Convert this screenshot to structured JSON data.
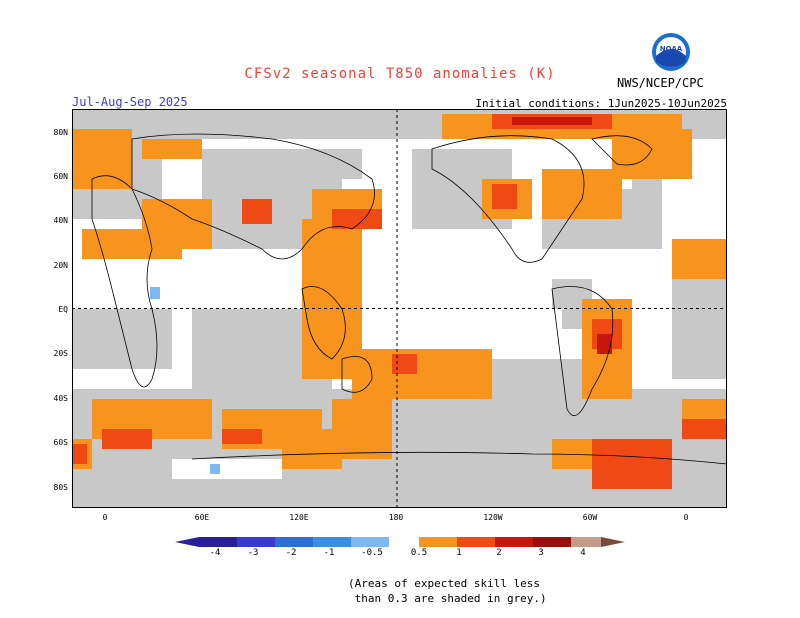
{
  "header": {
    "title": "CFSv2 seasonal T850 anomalies (K)",
    "season": "Jul-Aug-Sep 2025",
    "initial_conditions": "Initial conditions: 1Jun2025-10Jun2025",
    "agency": "NWS/NCEP/CPC",
    "logo_text": "NOAA"
  },
  "map": {
    "lat_labels": [
      "80N",
      "60N",
      "40N",
      "20N",
      "EQ",
      "20S",
      "40S",
      "60S",
      "80S"
    ],
    "lon_labels": [
      "0",
      "60E",
      "120E",
      "180",
      "120W",
      "60W",
      "0"
    ]
  },
  "colorbar": {
    "labels": [
      "-4",
      "-3",
      "-2",
      "-1",
      "-0.5",
      "0.5",
      "1",
      "2",
      "3",
      "4"
    ],
    "colors": [
      "#2a1f9a",
      "#3a3ad0",
      "#2a6fd8",
      "#3a8ee8",
      "#7db8f0",
      "#ffffff",
      "#f7941d",
      "#f04a14",
      "#c8180e",
      "#9a0f0a",
      "#c49a8a",
      "#7a4a3a"
    ]
  },
  "legend_colors": {
    "skill_grey": "#c8c8c8",
    "anomaly_0_5_1": "#f7941d",
    "anomaly_1_2": "#f04a14",
    "anomaly_2_3": "#c8180e",
    "anomaly_neg": "#7db8f0"
  },
  "footnote": {
    "line1": "(Areas of expected skill less",
    "line2": " than 0.3 are shaded in grey.)"
  }
}
